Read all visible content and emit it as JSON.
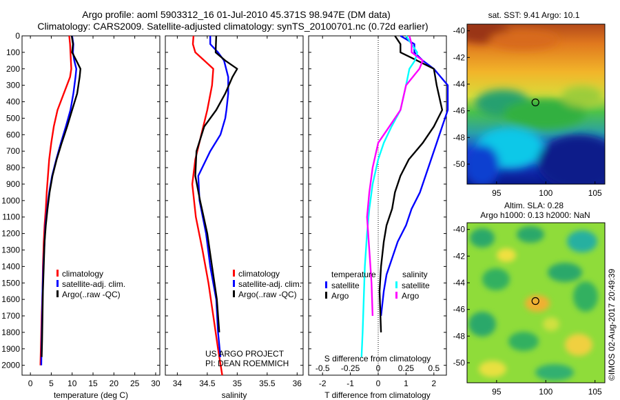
{
  "title": {
    "line1": "Argo profile: aoml 5903312_16 01-Jul-2010 45.371S 98.947E (DM data)",
    "line2": "Climatology: CARS2009. Satellite-adjusted climatology: synTS_20100701.nc (0.72d earlier)"
  },
  "credit": {
    "project": "US ARGO PROJECT",
    "pi": "PI: DEAN ROEMMICH",
    "stamp": "©IMOS 02-Aug-2017 20:49:39"
  },
  "colors": {
    "red": "#ff0000",
    "blue": "#0000ff",
    "black": "#000000",
    "cyan": "#00ffff",
    "magenta": "#ff00ff"
  },
  "chart_data": [
    {
      "type": "line",
      "name": "temperature-profile",
      "xlabel": "temperature (deg C)",
      "xlim": [
        -2,
        31
      ],
      "ylim": [
        2060,
        0
      ],
      "xticks": [
        "0",
        "5",
        "10",
        "15",
        "20",
        "25",
        "30"
      ],
      "xtick_values": [
        0,
        5,
        10,
        15,
        20,
        25,
        30
      ],
      "yticks": [
        "0",
        "100",
        "200",
        "300",
        "400",
        "500",
        "600",
        "700",
        "800",
        "900",
        "1000",
        "1100",
        "1200",
        "1300",
        "1400",
        "1500",
        "1600",
        "1700",
        "1800",
        "1900",
        "2000"
      ],
      "ytick_values": [
        0,
        100,
        200,
        300,
        400,
        500,
        600,
        700,
        800,
        900,
        1000,
        1100,
        1200,
        1300,
        1400,
        1500,
        1600,
        1700,
        1800,
        1900,
        2000
      ],
      "legend": [
        "climatology",
        "satellite-adj. clim.",
        "Argo(..raw -QC)"
      ],
      "series": [
        {
          "name": "climatology",
          "color": "#ff0000",
          "x": [
            9.3,
            9.5,
            9.6,
            9.7,
            9.8,
            9.5,
            8.0,
            6.5,
            5.6,
            5.0,
            4.5,
            4.2,
            3.9,
            3.7,
            3.4,
            3.2,
            3.0,
            2.9,
            2.7,
            2.6,
            2.5,
            2.4
          ],
          "y": [
            0,
            50,
            100,
            150,
            200,
            250,
            350,
            450,
            550,
            650,
            750,
            850,
            950,
            1050,
            1150,
            1250,
            1400,
            1550,
            1700,
            1800,
            1900,
            2000
          ]
        },
        {
          "name": "satellite-adj. clim.",
          "color": "#0000ff",
          "x": [
            10.0,
            10.3,
            10.2,
            10.5,
            11.0,
            10.8,
            10.3,
            9.6,
            8.5,
            7.3,
            6.2,
            5.2,
            4.5,
            4.0,
            3.6,
            3.4,
            3.1,
            2.9,
            2.8,
            2.7,
            2.6
          ],
          "y": [
            0,
            50,
            100,
            150,
            200,
            250,
            350,
            450,
            550,
            650,
            750,
            850,
            950,
            1050,
            1150,
            1250,
            1400,
            1550,
            1700,
            1850,
            2000
          ]
        },
        {
          "name": "Argo(..raw -QC)",
          "color": "#000000",
          "x": [
            9.9,
            10.2,
            10.0,
            11.0,
            12.0,
            11.8,
            11.2,
            10.0,
            8.8,
            7.5,
            6.3,
            5.3,
            4.6,
            4.1,
            3.7,
            3.4,
            3.2,
            3.0,
            2.9,
            2.8,
            2.7
          ],
          "y": [
            0,
            50,
            100,
            150,
            200,
            250,
            350,
            450,
            550,
            650,
            750,
            850,
            950,
            1050,
            1150,
            1250,
            1400,
            1550,
            1700,
            1850,
            1950
          ]
        }
      ]
    },
    {
      "type": "line",
      "name": "salinity-profile",
      "xlabel": "salinity",
      "xlim": [
        33.8,
        36.1
      ],
      "ylim": [
        2060,
        0
      ],
      "xticks": [
        "34",
        "34.5",
        "35",
        "35.5",
        "36"
      ],
      "xtick_values": [
        34,
        34.5,
        35,
        35.5,
        36
      ],
      "legend": [
        "climatology",
        "satellite-adj. clim.",
        "Argo(..raw -QC)"
      ],
      "series": [
        {
          "name": "climatology",
          "color": "#ff0000",
          "x": [
            34.27,
            34.26,
            34.3,
            34.45,
            34.6,
            34.58,
            34.5,
            34.4,
            34.3,
            34.25,
            34.31,
            34.42,
            34.52,
            34.6,
            34.68,
            34.75
          ],
          "y": [
            0,
            50,
            100,
            150,
            200,
            300,
            450,
            600,
            750,
            900,
            1100,
            1300,
            1500,
            1700,
            1900,
            2060
          ]
        },
        {
          "name": "satellite-adj. clim.",
          "color": "#0000ff",
          "x": [
            34.55,
            34.55,
            34.68,
            34.78,
            34.85,
            34.85,
            34.82,
            34.8,
            34.72,
            34.55,
            34.35,
            34.37,
            34.48,
            34.55,
            34.65,
            34.68,
            34.72
          ],
          "y": [
            0,
            50,
            100,
            150,
            250,
            350,
            450,
            500,
            600,
            700,
            850,
            1000,
            1200,
            1400,
            1600,
            1800,
            1950
          ]
        },
        {
          "name": "Argo(..raw -QC)",
          "color": "#000000",
          "x": [
            34.65,
            34.64,
            34.8,
            35.0,
            34.92,
            34.8,
            34.65,
            34.45,
            34.32,
            34.3,
            34.38,
            34.5,
            34.58,
            34.66,
            34.7
          ],
          "y": [
            0,
            100,
            150,
            200,
            250,
            350,
            450,
            550,
            700,
            850,
            1000,
            1200,
            1400,
            1600,
            1800
          ]
        }
      ]
    },
    {
      "type": "line",
      "name": "difference-profile",
      "xlabel": "T difference from climatology",
      "xlabel_top": "S difference from climatology",
      "xlim": [
        -2.5,
        2.45
      ],
      "ylim": [
        2060,
        0
      ],
      "xticks": [
        "-2",
        "-1",
        "0",
        "1",
        "2"
      ],
      "xtick_values": [
        -2,
        -1,
        0,
        1,
        2
      ],
      "sticks": [
        "-0.5",
        "-0.25",
        "0",
        "0.25",
        "0.5"
      ],
      "stick_values": [
        -0.5,
        -0.25,
        0,
        0.25,
        0.5
      ],
      "legend_titles": [
        "temperature",
        "salinity"
      ],
      "legend": [
        "satellite",
        "Argo",
        "satellite",
        "Argo"
      ],
      "series": [
        {
          "name": "temperature satellite",
          "color": "#0000ff",
          "x": [
            0.8,
            1.3,
            1.3,
            1.6,
            2.0,
            2.5,
            2.5,
            2.3,
            2.1,
            1.9,
            1.7,
            1.5,
            1.2,
            1.0,
            0.7,
            0.5,
            0.3,
            0.2,
            0.1
          ],
          "y": [
            0,
            50,
            100,
            150,
            200,
            300,
            450,
            550,
            650,
            750,
            850,
            950,
            1050,
            1150,
            1250,
            1350,
            1450,
            1550,
            1700
          ]
        },
        {
          "name": "temperature Argo",
          "color": "#000000",
          "x": [
            0.6,
            0.8,
            0.8,
            1.4,
            2.0,
            2.1,
            2.3,
            2.0,
            1.6,
            1.1,
            0.8,
            0.6,
            0.5,
            0.3,
            0.2,
            0.1,
            0.05,
            0.1
          ],
          "y": [
            0,
            50,
            100,
            150,
            200,
            300,
            450,
            550,
            650,
            750,
            850,
            950,
            1050,
            1150,
            1250,
            1400,
            1550,
            1800
          ]
        },
        {
          "name": "salinity satellite",
          "color": "#00ffff",
          "x": [
            0.25,
            0.3,
            0.35,
            0.33,
            0.28,
            0.25,
            0.2,
            0.12,
            0.05,
            0.0,
            -0.05,
            -0.08,
            -0.1,
            -0.12,
            -0.13,
            -0.14,
            -0.15
          ],
          "y": [
            0,
            50,
            100,
            150,
            200,
            300,
            450,
            550,
            650,
            750,
            900,
            1050,
            1200,
            1400,
            1600,
            1800,
            1950
          ]
        },
        {
          "name": "salinity Argo",
          "color": "#ff00ff",
          "x": [
            0.28,
            0.3,
            0.3,
            0.4,
            0.37,
            0.25,
            0.2,
            0.1,
            0.0,
            -0.05,
            -0.08,
            -0.1,
            -0.08,
            -0.06,
            -0.05
          ],
          "y": [
            0,
            50,
            100,
            150,
            200,
            300,
            450,
            550,
            650,
            800,
            950,
            1100,
            1300,
            1500,
            1700
          ]
        }
      ]
    },
    {
      "type": "heatmap",
      "name": "sst-map",
      "title": "sat. SST: 9.41  Argo: 10.1",
      "xticks": [
        "95",
        "100",
        "105"
      ],
      "xtick_values": [
        95,
        100,
        105
      ],
      "yticks": [
        "-40",
        "-42",
        "-44",
        "-46",
        "-48",
        "-50"
      ],
      "ytick_values": [
        -40,
        -42,
        -44,
        -46,
        -48,
        -50
      ],
      "xlim": [
        92,
        106
      ],
      "ylim": [
        -51.5,
        -39.5
      ],
      "marker": {
        "lon": 98.947,
        "lat": -45.371
      }
    },
    {
      "type": "heatmap",
      "name": "sla-map",
      "title": "Altim. SLA: 0.28",
      "subtitle": "Argo h1000: 0.13 h2000: NaN",
      "xticks": [
        "95",
        "100",
        "105"
      ],
      "xtick_values": [
        95,
        100,
        105
      ],
      "yticks": [
        "-40",
        "-42",
        "-44",
        "-46",
        "-48",
        "-50"
      ],
      "ytick_values": [
        -40,
        -42,
        -44,
        -46,
        -48,
        -50
      ],
      "xlim": [
        92,
        106
      ],
      "ylim": [
        -51.5,
        -39.5
      ],
      "marker": {
        "lon": 98.947,
        "lat": -45.371
      }
    }
  ]
}
